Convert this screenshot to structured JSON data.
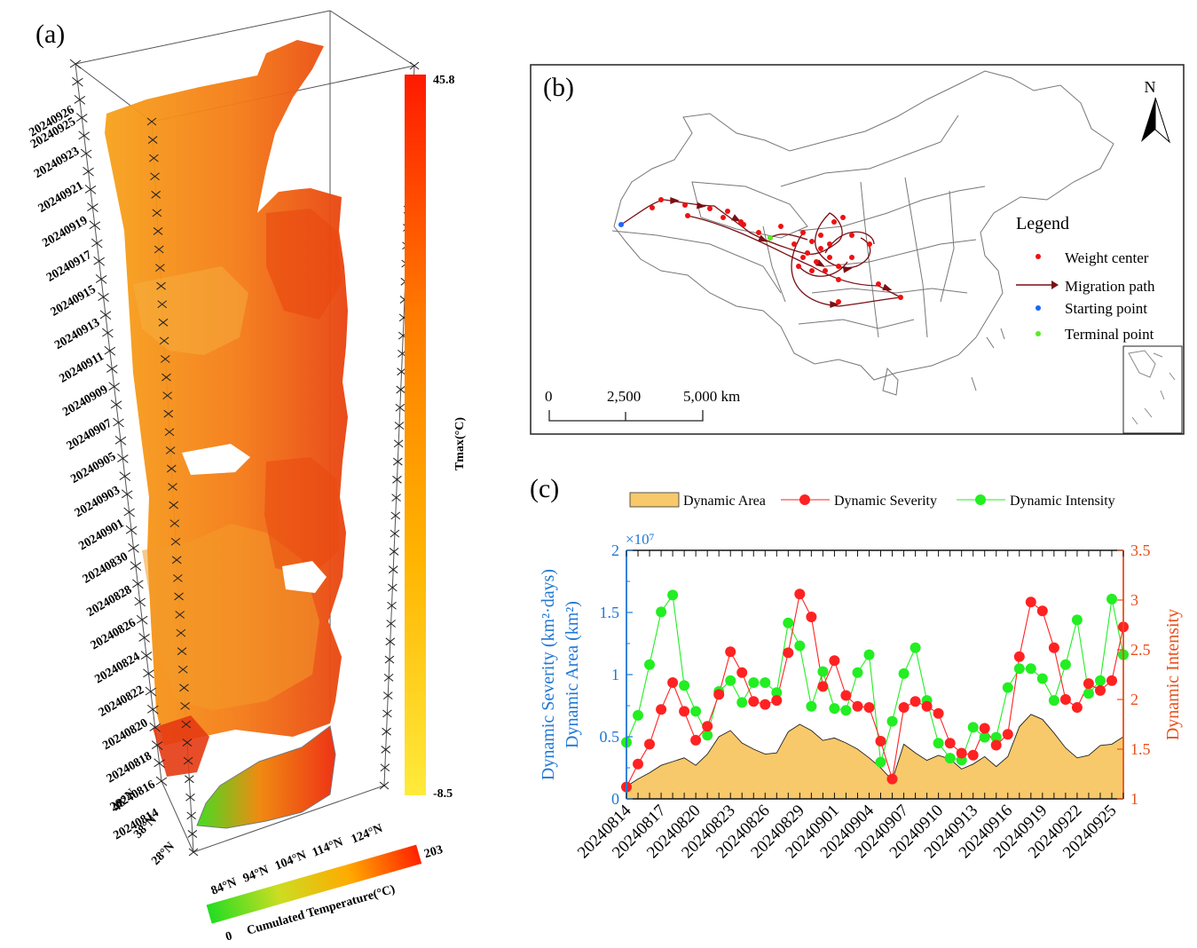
{
  "panels": {
    "a": "(a)",
    "b": "(b)",
    "c": "(c)"
  },
  "panel_a": {
    "dates": [
      "20240926",
      "20240925",
      "20240923",
      "20240921",
      "20240919",
      "20240917",
      "20240915",
      "20240913",
      "20240911",
      "20240909",
      "20240907",
      "20240905",
      "20240903",
      "20240901",
      "20240830",
      "20240828",
      "20240826",
      "20240824",
      "20240822",
      "20240820",
      "20240818",
      "20240816",
      "20240814"
    ],
    "lat_labels": [
      "48°N",
      "38°N",
      "28°N"
    ],
    "lon_labels": [
      "84°N",
      "94°N",
      "104°N",
      "114°N",
      "124°N"
    ],
    "tmax_colorbar": {
      "title": "Tmax(°C)",
      "max_label": "45.8",
      "min_label": "-8.5",
      "colors": [
        "#ffeb3b",
        "#ffb300",
        "#ff7a00",
        "#ff1a00"
      ]
    },
    "ct_colorbar": {
      "title": "Cumulated Temperature(°C)",
      "min_label": "0",
      "max_label": "203",
      "colors": [
        "#22dd22",
        "#ccdd22",
        "#ffaa00",
        "#ff2200"
      ]
    }
  },
  "panel_b": {
    "legend": {
      "title": "Legend",
      "items": [
        {
          "label": "Weight center",
          "color": "#ee1111",
          "kind": "dot"
        },
        {
          "label": "Migration path",
          "color": "#7a0f14",
          "kind": "arrow"
        },
        {
          "label": "Starting point",
          "color": "#1a66ff",
          "kind": "dot"
        },
        {
          "label": "Terminal point",
          "color": "#55ee22",
          "kind": "dot"
        }
      ]
    },
    "north_label": "N",
    "scale_labels": [
      "0",
      "2,500",
      "5,000 km"
    ]
  },
  "chart_data": {
    "type": "line",
    "x": [
      "20240814",
      "20240815",
      "20240816",
      "20240817",
      "20240818",
      "20240819",
      "20240820",
      "20240821",
      "20240822",
      "20240823",
      "20240824",
      "20240825",
      "20240826",
      "20240827",
      "20240828",
      "20240829",
      "20240830",
      "20240831",
      "20240901",
      "20240902",
      "20240903",
      "20240904",
      "20240905",
      "20240906",
      "20240907",
      "20240908",
      "20240909",
      "20240910",
      "20240911",
      "20240912",
      "20240913",
      "20240914",
      "20240915",
      "20240916",
      "20240917",
      "20240918",
      "20240919",
      "20240920",
      "20240921",
      "20240922",
      "20240923",
      "20240924",
      "20240925",
      "20240926"
    ],
    "xtick_labels": [
      "20240814",
      "20240817",
      "20240820",
      "20240823",
      "20240826",
      "20240829",
      "20240901",
      "20240904",
      "20240907",
      "20240910",
      "20240913",
      "20240916",
      "20240919",
      "20240922",
      "20240925"
    ],
    "series": [
      {
        "name": "Dynamic Area",
        "axis": "left",
        "type": "area",
        "color": "#f7c96a",
        "values": [
          1000000,
          1600000,
          2100000,
          2700000,
          3000000,
          3300000,
          2700000,
          3600000,
          5000000,
          5500000,
          4500000,
          4000000,
          3600000,
          3700000,
          5400000,
          6000000,
          5500000,
          4700000,
          4900000,
          4500000,
          4000000,
          3300000,
          2500000,
          1500000,
          4400000,
          3700000,
          3100000,
          3500000,
          3200000,
          2400000,
          2800000,
          3400000,
          2600000,
          3400000,
          5800000,
          6800000,
          6400000,
          5300000,
          4100000,
          3300000,
          3500000,
          4300000,
          4400000,
          5000000
        ]
      },
      {
        "name": "Dynamic Severity",
        "axis": "right",
        "type": "line",
        "color": "#ff2222",
        "values": [
          1.12,
          1.35,
          1.55,
          1.9,
          2.17,
          1.88,
          1.59,
          1.73,
          2.05,
          2.48,
          2.27,
          1.98,
          1.95,
          1.99,
          2.47,
          3.06,
          2.83,
          2.13,
          2.39,
          2.04,
          1.93,
          1.92,
          1.58,
          1.2,
          1.92,
          1.98,
          1.93,
          1.86,
          1.56,
          1.46,
          1.44,
          1.71,
          1.54,
          1.65,
          2.43,
          2.98,
          2.89,
          2.52,
          2.0,
          1.92,
          2.16,
          2.09,
          2.19,
          2.73
        ]
      },
      {
        "name": "Dynamic Intensity",
        "axis": "right",
        "type": "line",
        "color": "#22ee22",
        "values": [
          1.57,
          1.84,
          2.35,
          2.88,
          3.05,
          2.14,
          1.88,
          1.64,
          2.08,
          2.19,
          1.97,
          2.17,
          2.17,
          2.07,
          2.77,
          2.54,
          1.93,
          2.28,
          1.91,
          1.89,
          2.27,
          2.45,
          1.37,
          1.78,
          2.26,
          2.52,
          1.99,
          1.56,
          1.41,
          1.39,
          1.72,
          1.62,
          1.62,
          2.12,
          2.31,
          2.31,
          2.21,
          1.99,
          2.35,
          2.8,
          2.06,
          2.19,
          3.01,
          2.45
        ]
      }
    ],
    "left_axis": {
      "label": "Dynamic Severity (km²·days)\nDynamic Area (km²)",
      "ylim": [
        0,
        20000000
      ],
      "ticks": [
        "0",
        "0.5",
        "1",
        "1.5",
        "2"
      ],
      "multiplier": "×10⁷",
      "color": "#1f77d4"
    },
    "right_axis": {
      "label": "Dynamic Intensity",
      "ylim": [
        1,
        3.5
      ],
      "ticks": [
        "1",
        "1.5",
        "2",
        "2.5",
        "3",
        "3.5"
      ],
      "color": "#e8501a"
    },
    "legend_position": "top"
  }
}
